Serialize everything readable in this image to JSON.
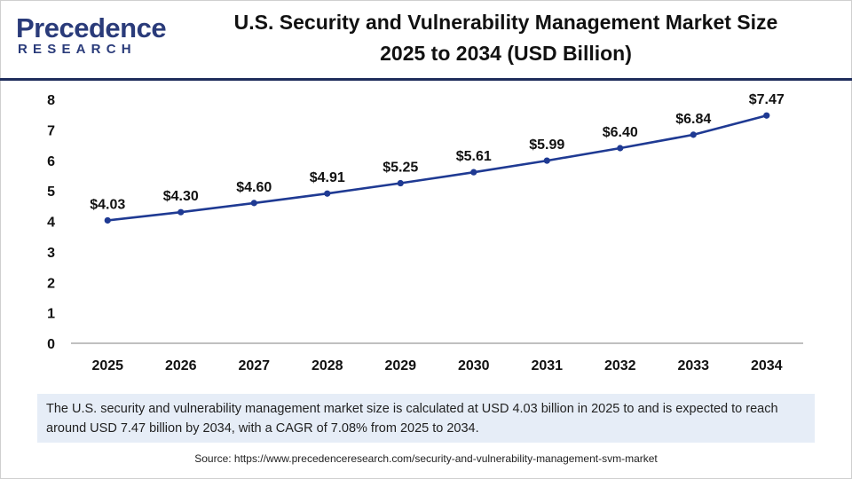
{
  "header": {
    "logo_word": "Precedence",
    "logo_sub": "RESEARCH",
    "title_line1": "U.S. Security and Vulnerability Management Market Size",
    "title_line2": "2025 to 2034 (USD Billion)"
  },
  "colors": {
    "line": "#1f3a93",
    "axis": "#9a9a9a",
    "brand": "#2a3b7a",
    "note_bg": "#e6edf7"
  },
  "chart_data": {
    "type": "line",
    "title": "U.S. Security and Vulnerability Management Market Size 2025 to 2034 (USD Billion)",
    "xlabel": "",
    "ylabel": "",
    "categories": [
      "2025",
      "2026",
      "2027",
      "2028",
      "2029",
      "2030",
      "2031",
      "2032",
      "2033",
      "2034"
    ],
    "values": [
      4.03,
      4.3,
      4.6,
      4.91,
      5.25,
      5.61,
      5.99,
      6.4,
      6.84,
      7.47
    ],
    "labels": [
      "$4.03",
      "$4.30",
      "$4.60",
      "$4.91",
      "$5.25",
      "$5.61",
      "$5.99",
      "$6.40",
      "$6.84",
      "$7.47"
    ],
    "yticks": [
      0,
      1,
      2,
      3,
      4,
      5,
      6,
      7,
      8
    ],
    "ylim": [
      0,
      8
    ],
    "grid": false,
    "legend": "none"
  },
  "note": {
    "text": "The U.S. security and vulnerability management market size is calculated at USD 4.03 billion in 2025 to and is expected to reach around USD 7.47 billion by 2034, with a CAGR of 7.08% from 2025 to 2034."
  },
  "source": {
    "label": "Source:",
    "url": "https://www.precedenceresearch.com/security-and-vulnerability-management-svm-market"
  }
}
